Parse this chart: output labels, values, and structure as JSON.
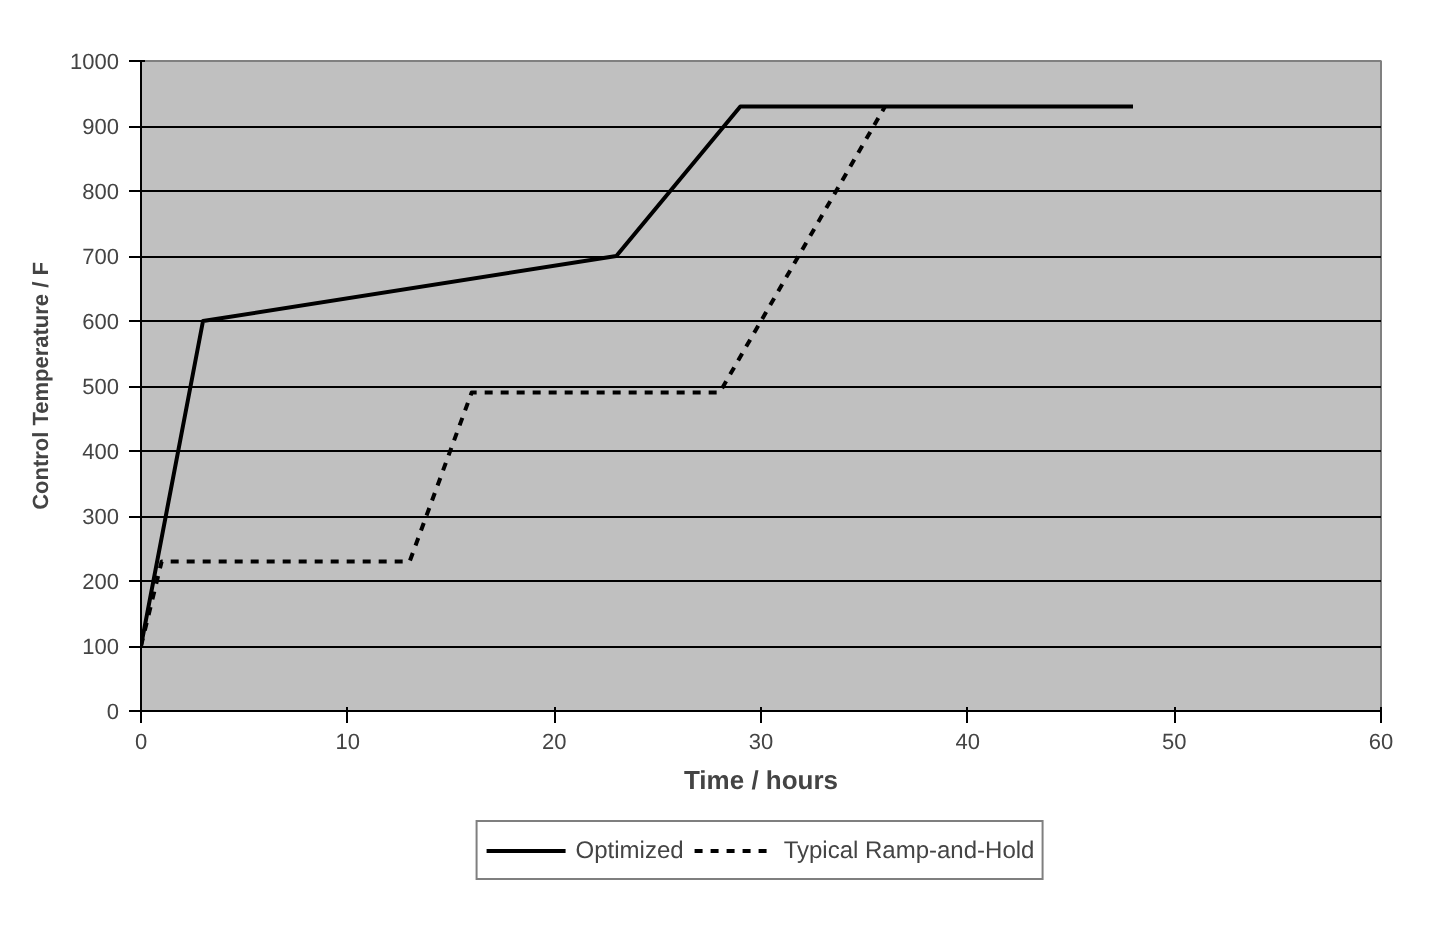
{
  "chart_data": {
    "type": "line",
    "xlabel": "Time / hours",
    "ylabel": "Control Temperature / F",
    "xlim": [
      0,
      60
    ],
    "xticks": [
      0,
      10,
      20,
      30,
      40,
      50,
      60
    ],
    "ylim": [
      0,
      1000
    ],
    "yticks": [
      0,
      100,
      200,
      300,
      400,
      500,
      600,
      700,
      800,
      900,
      1000
    ],
    "grid": "y",
    "legend": "bottom",
    "marker": "none",
    "series": [
      {
        "name": "Optimized",
        "color": "#000000",
        "line_style": "solid",
        "x": [
          0,
          3,
          23,
          29,
          48
        ],
        "values": [
          100,
          600,
          700,
          930,
          930
        ]
      },
      {
        "name": "Typical Ramp-and-Hold",
        "color": "#000000",
        "line_style": "dashed",
        "x": [
          0,
          1,
          13,
          16,
          28,
          36
        ],
        "values": [
          100,
          230,
          230,
          490,
          490,
          930
        ]
      }
    ]
  }
}
